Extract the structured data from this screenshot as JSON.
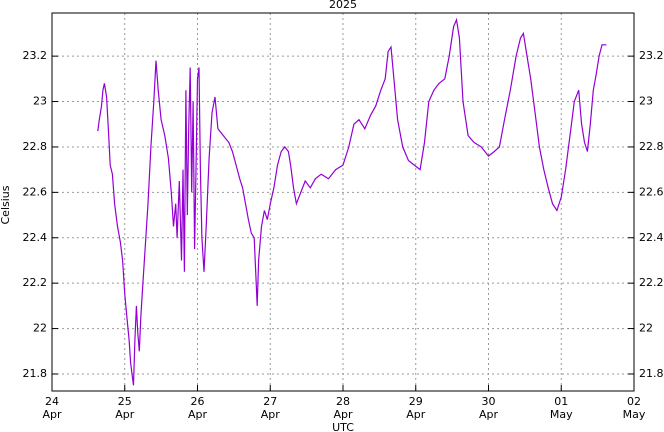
{
  "chart_data": {
    "type": "line",
    "title": "2025",
    "xlabel": "UTC",
    "ylabel": "Celsius",
    "xlim": [
      24,
      32
    ],
    "xticks": [
      {
        "value": 24,
        "label": "24\nApr"
      },
      {
        "value": 25,
        "label": "25\nApr"
      },
      {
        "value": 26,
        "label": "26\nApr"
      },
      {
        "value": 27,
        "label": "27\nApr"
      },
      {
        "value": 28,
        "label": "28\nApr"
      },
      {
        "value": 29,
        "label": "29\nApr"
      },
      {
        "value": 30,
        "label": "30\nApr"
      },
      {
        "value": 31,
        "label": "01\nMay"
      },
      {
        "value": 32,
        "label": "02\nMay"
      }
    ],
    "ylim": [
      21.725,
      23.39
    ],
    "yticks": [
      21.8,
      22,
      22.2,
      22.4,
      22.6,
      22.8,
      23,
      23.2
    ],
    "grid": true,
    "series": [
      {
        "color": "#9400d3",
        "x": [
          24.63,
          24.65,
          24.68,
          24.7,
          24.72,
          24.75,
          24.78,
          24.8,
          24.83,
          24.86,
          24.9,
          24.94,
          24.97,
          25.0,
          25.03,
          25.06,
          25.08,
          25.1,
          25.12,
          25.14,
          25.16,
          25.18,
          25.2,
          25.22,
          25.25,
          25.28,
          25.32,
          25.36,
          25.4,
          25.43,
          25.46,
          25.5,
          25.55,
          25.6,
          25.64,
          25.67,
          25.7,
          25.72,
          25.75,
          25.78,
          25.8,
          25.82,
          25.84,
          25.86,
          25.88,
          25.9,
          25.92,
          25.94,
          25.96,
          25.98,
          26.0,
          26.02,
          26.04,
          26.06,
          26.09,
          26.12,
          26.16,
          26.2,
          26.24,
          26.28,
          26.33,
          26.38,
          26.43,
          26.48,
          26.53,
          26.58,
          26.62,
          26.66,
          26.7,
          26.74,
          26.78,
          26.8,
          26.82,
          26.84,
          26.88,
          26.92,
          26.96,
          27.0,
          27.05,
          27.1,
          27.15,
          27.2,
          27.25,
          27.28,
          27.32,
          27.36,
          27.42,
          27.48,
          27.55,
          27.62,
          27.7,
          27.8,
          27.9,
          28.0,
          28.08,
          28.15,
          28.22,
          28.3,
          28.38,
          28.45,
          28.52,
          28.58,
          28.62,
          28.66,
          28.7,
          28.75,
          28.82,
          28.9,
          28.98,
          29.06,
          29.12,
          29.18,
          29.25,
          29.32,
          29.4,
          29.46,
          29.52,
          29.56,
          29.6,
          29.65,
          29.72,
          29.8,
          29.9,
          30.0,
          30.08,
          30.15,
          30.22,
          30.3,
          30.38,
          30.44,
          30.48,
          30.52,
          30.58,
          30.64,
          30.7,
          30.76,
          30.82,
          30.88,
          30.94,
          31.0,
          31.06,
          31.12,
          31.18,
          31.24,
          31.28,
          31.32,
          31.36,
          31.4,
          31.44,
          31.48,
          31.52,
          31.56,
          31.62
        ],
        "values": [
          22.87,
          22.92,
          22.98,
          23.05,
          23.08,
          23.02,
          22.85,
          22.72,
          22.68,
          22.55,
          22.45,
          22.38,
          22.3,
          22.15,
          22.05,
          21.95,
          21.85,
          21.8,
          21.75,
          21.95,
          22.1,
          21.98,
          21.9,
          22.05,
          22.2,
          22.35,
          22.55,
          22.8,
          23.0,
          23.18,
          23.05,
          22.92,
          22.85,
          22.75,
          22.6,
          22.45,
          22.55,
          22.4,
          22.65,
          22.3,
          22.7,
          22.25,
          23.05,
          22.5,
          22.9,
          23.15,
          22.6,
          23.0,
          22.35,
          22.7,
          23.1,
          23.15,
          22.7,
          22.4,
          22.25,
          22.45,
          22.75,
          22.95,
          23.02,
          22.88,
          22.86,
          22.84,
          22.82,
          22.78,
          22.72,
          22.66,
          22.62,
          22.55,
          22.48,
          22.42,
          22.4,
          22.25,
          22.1,
          22.3,
          22.45,
          22.52,
          22.48,
          22.55,
          22.62,
          22.72,
          22.78,
          22.8,
          22.78,
          22.72,
          22.62,
          22.55,
          22.6,
          22.65,
          22.62,
          22.66,
          22.68,
          22.66,
          22.7,
          22.72,
          22.8,
          22.9,
          22.92,
          22.88,
          22.94,
          22.98,
          23.05,
          23.1,
          23.22,
          23.24,
          23.1,
          22.92,
          22.8,
          22.74,
          22.72,
          22.7,
          22.82,
          23.0,
          23.05,
          23.08,
          23.1,
          23.2,
          23.33,
          23.36,
          23.28,
          23.0,
          22.85,
          22.82,
          22.8,
          22.76,
          22.78,
          22.8,
          22.92,
          23.05,
          23.2,
          23.28,
          23.3,
          23.22,
          23.1,
          22.95,
          22.8,
          22.7,
          22.62,
          22.55,
          22.52,
          22.58,
          22.7,
          22.85,
          23.0,
          23.05,
          22.9,
          22.82,
          22.78,
          22.9,
          23.05,
          23.12,
          23.2,
          23.25,
          23.25
        ]
      }
    ]
  }
}
